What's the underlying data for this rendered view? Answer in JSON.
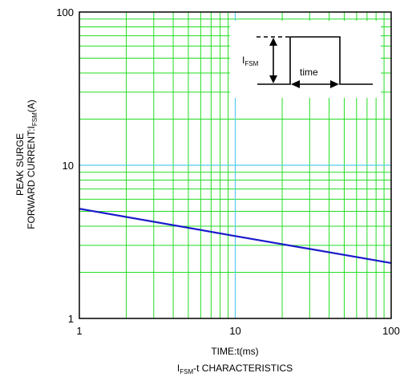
{
  "chart_data": {
    "type": "line",
    "title": "",
    "caption": {
      "prefix": "I",
      "sub": "FSM",
      "suffix": "-t CHARACTERISTICS"
    },
    "xlabel": "TIME:t(ms)",
    "ylabel": {
      "line1": "PEAK SURGE",
      "line2_prefix": "FORWARD CURRENT:I",
      "line2_sub": "FSM",
      "line2_suffix": "(A)"
    },
    "x_scale": "log",
    "y_scale": "log",
    "xlim": [
      1,
      100
    ],
    "ylim": [
      1,
      100
    ],
    "x_ticks": [
      {
        "value": 1,
        "label": "1"
      },
      {
        "value": 10,
        "label": "10"
      },
      {
        "value": 100,
        "label": "100"
      }
    ],
    "y_ticks": [
      {
        "value": 1,
        "label": "1"
      },
      {
        "value": 10,
        "label": "10"
      },
      {
        "value": 100,
        "label": "100"
      }
    ],
    "grid": true,
    "colors": {
      "minor_grid": "#22dd22",
      "major_grid": "#55ccee",
      "series": "#1a1acc"
    },
    "series": [
      {
        "x": [
          1,
          10,
          100
        ],
        "y": [
          5.2,
          3.45,
          2.3
        ],
        "color": "#1a1acc"
      }
    ],
    "inset": {
      "label_prefix": "I",
      "label_sub": "FSM",
      "time_label": "time"
    }
  }
}
